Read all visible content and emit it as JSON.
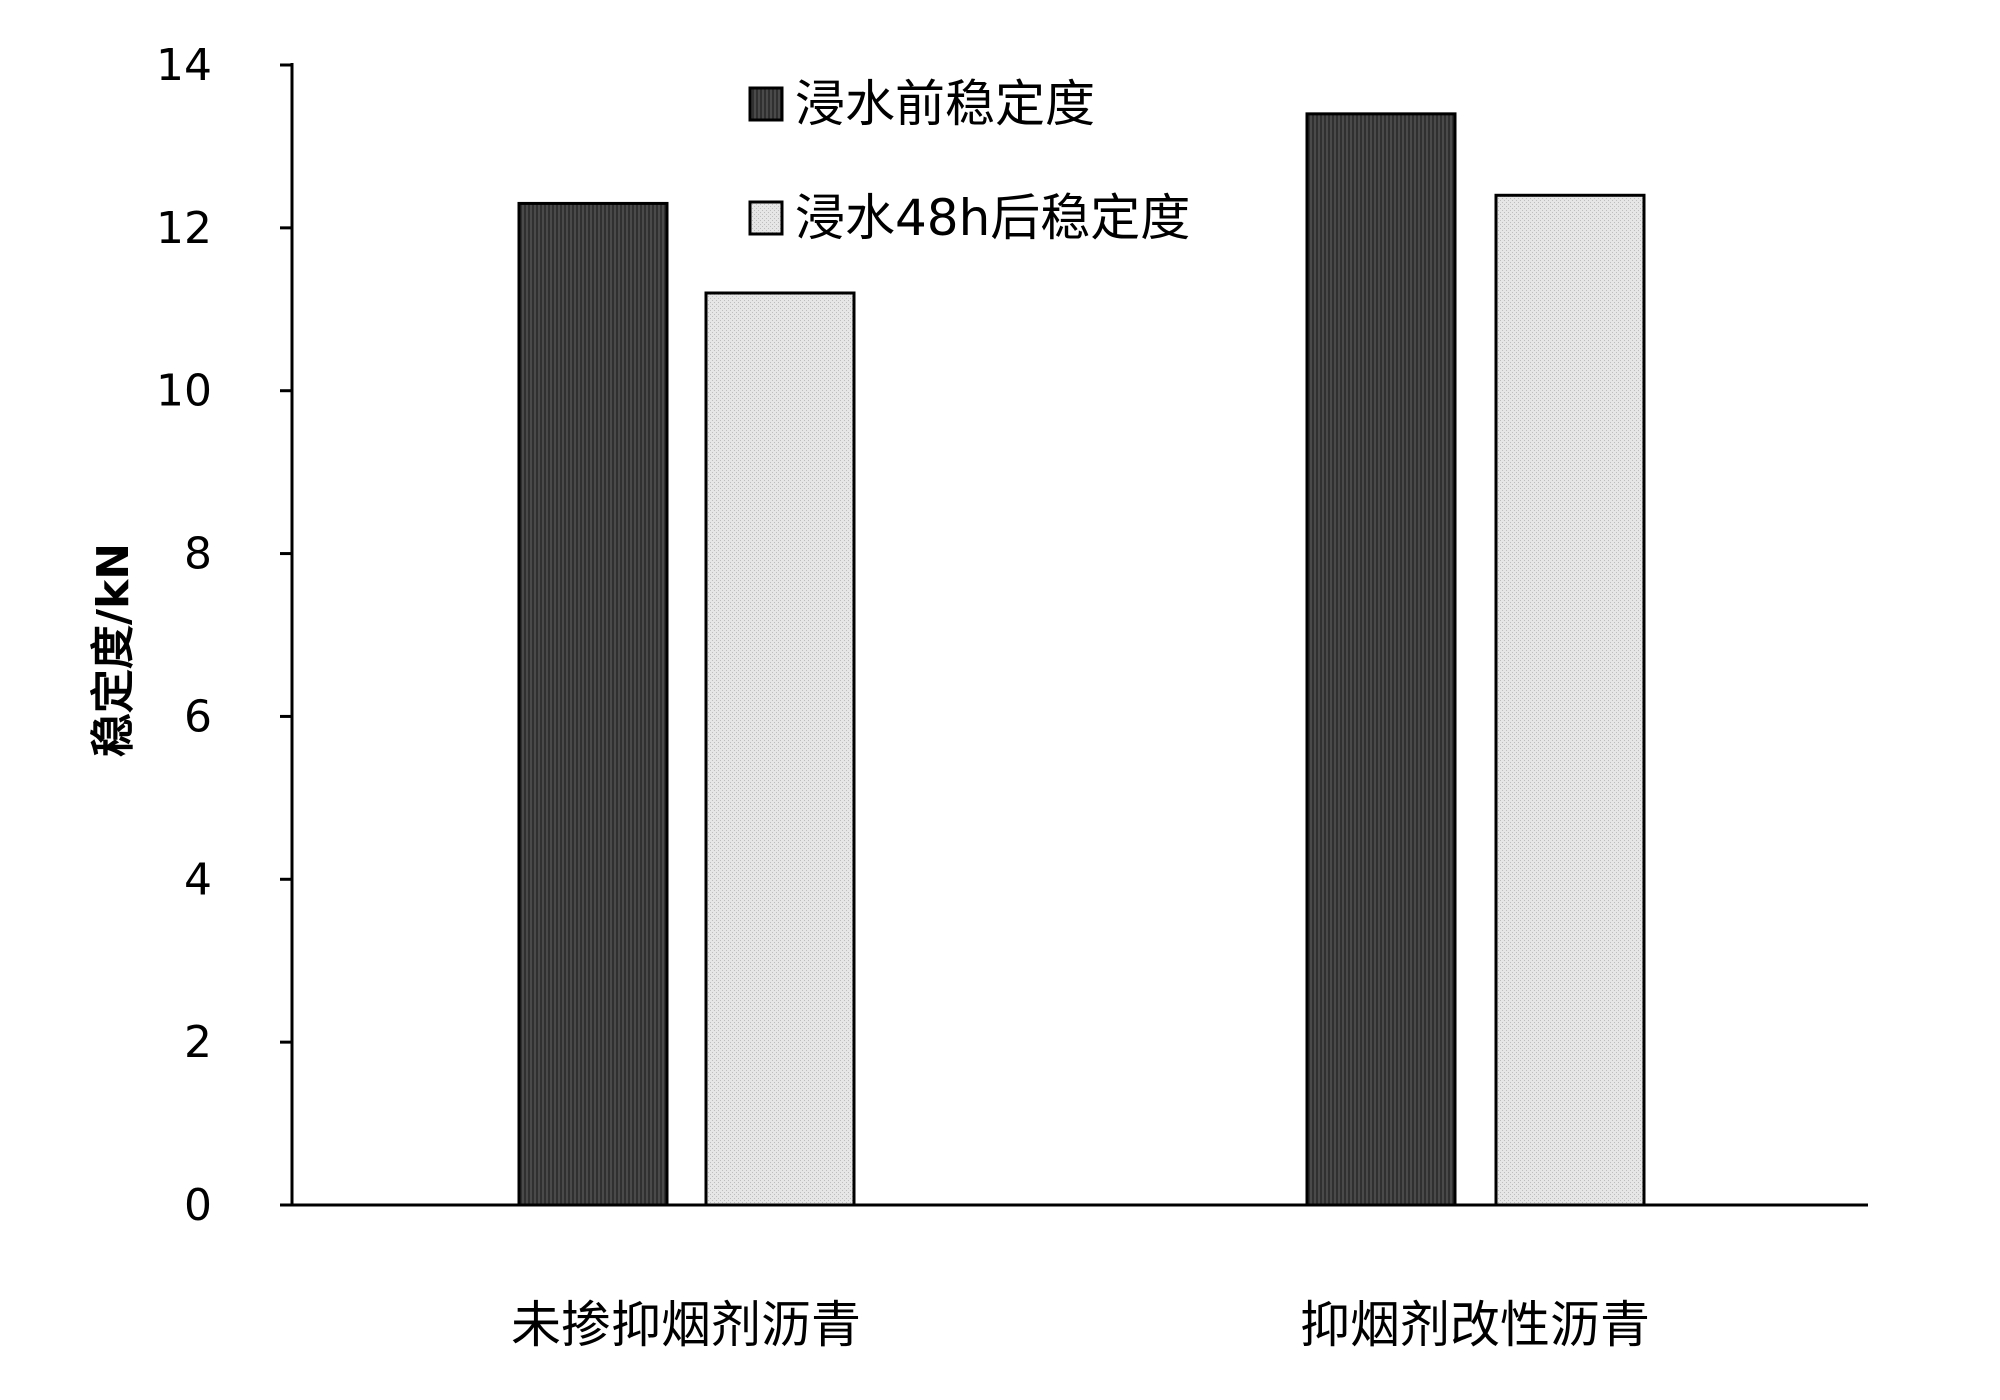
{
  "chart_data": {
    "type": "bar",
    "title": "",
    "xlabel": "",
    "ylabel": "稳定度/kN",
    "ylim": [
      0,
      14
    ],
    "yticks": [
      0,
      2,
      4,
      6,
      8,
      10,
      12,
      14
    ],
    "grid": false,
    "legend_position": "top-center",
    "categories": [
      "未掺抑烟剂沥青",
      "抑烟剂改性沥青"
    ],
    "series": [
      {
        "name": "浸水前稳定度",
        "values": [
          12.3,
          13.4
        ],
        "color": "#404040"
      },
      {
        "name": "浸水48h后稳定度",
        "values": [
          11.2,
          12.4
        ],
        "color": "#e0e0e0"
      }
    ]
  }
}
